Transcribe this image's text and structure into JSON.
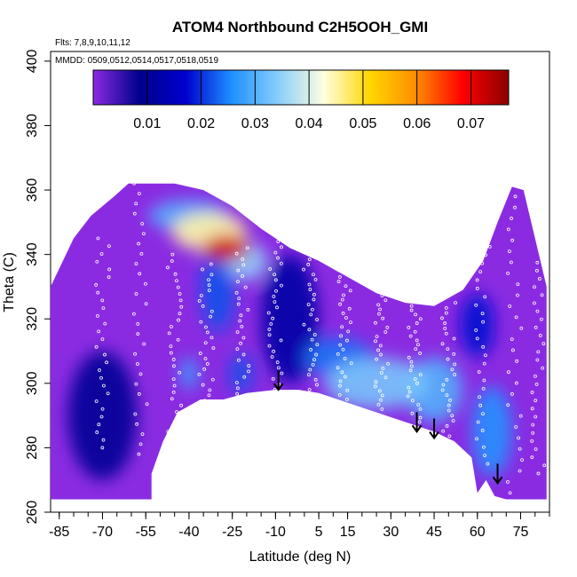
{
  "chart_data": {
    "type": "heatmap",
    "title": "ATOM4 Northbound C2H5OOH_GMI",
    "flights_note": "Flts: 7,8,9,10,11,12",
    "mmdd_note": "MMDD: 0509,0512,0514,0517,0518,0519",
    "xlabel": "Latitude (deg N)",
    "ylabel": "Theta (C)",
    "xlim": [
      -88,
      85
    ],
    "ylim": [
      260,
      403
    ],
    "x_tick_labels": [
      "-85",
      "-70",
      "-55",
      "-40",
      "-25",
      "-10",
      "5",
      "15",
      "30",
      "45",
      "60",
      "75"
    ],
    "x_tick_values": [
      -85,
      -70,
      -55,
      -40,
      -25,
      -10,
      5,
      15,
      30,
      45,
      60,
      75
    ],
    "y_tick_labels": [
      "260",
      "280",
      "300",
      "320",
      "340",
      "360",
      "380",
      "400"
    ],
    "y_tick_values": [
      260,
      280,
      300,
      320,
      340,
      360,
      380,
      400
    ],
    "colorbar": {
      "min": 0.0,
      "max": 0.077,
      "tick_labels": [
        "0.01",
        "0.02",
        "0.03",
        "0.04",
        "0.05",
        "0.06",
        "0.07"
      ],
      "tick_values": [
        0.01,
        0.02,
        0.03,
        0.04,
        0.05,
        0.06,
        0.07
      ],
      "colors": [
        "#8a2be2",
        "#00008b",
        "#0000cd",
        "#1e90ff",
        "#87cefa",
        "#ffffe0",
        "#ffd700",
        "#ff8c00",
        "#ff0000",
        "#8b0000"
      ]
    },
    "arrows": [
      {
        "lat": -9,
        "theta": 298
      },
      {
        "lat": 39,
        "theta": 285
      },
      {
        "lat": 45,
        "theta": 283
      },
      {
        "lat": 67,
        "theta": 269
      }
    ],
    "ground_boundary": [
      [
        -53,
        264
      ],
      [
        -53,
        272
      ],
      [
        -49,
        282
      ],
      [
        -44,
        291
      ],
      [
        -36,
        295
      ],
      [
        -28,
        295
      ],
      [
        -20,
        297
      ],
      [
        -10,
        298
      ],
      [
        -2,
        298
      ],
      [
        5,
        297
      ],
      [
        15,
        294
      ],
      [
        25,
        291
      ],
      [
        35,
        288
      ],
      [
        45,
        285
      ],
      [
        52,
        282
      ],
      [
        58,
        277
      ],
      [
        60,
        266
      ],
      [
        63,
        270
      ],
      [
        66,
        265
      ],
      [
        70,
        264
      ]
    ],
    "outer_boundary": [
      [
        -88,
        330
      ],
      [
        -80,
        345
      ],
      [
        -74,
        352
      ],
      [
        -66,
        358
      ],
      [
        -61,
        362
      ],
      [
        -55,
        362
      ],
      [
        -45,
        362
      ],
      [
        -35,
        360
      ],
      [
        -25,
        355
      ],
      [
        -15,
        348
      ],
      [
        -5,
        342
      ],
      [
        5,
        338
      ],
      [
        15,
        333
      ],
      [
        25,
        328
      ],
      [
        35,
        325
      ],
      [
        45,
        324
      ],
      [
        55,
        329
      ],
      [
        62,
        338
      ],
      [
        67,
        350
      ],
      [
        72,
        361
      ],
      [
        76,
        360
      ],
      [
        80,
        345
      ],
      [
        84,
        330
      ],
      [
        84,
        264
      ]
    ],
    "hotspots": [
      {
        "lat": -27,
        "theta": 342,
        "value": 0.072,
        "sx": 8,
        "sy": 4
      },
      {
        "lat": -33,
        "theta": 347,
        "value": 0.045,
        "sx": 13,
        "sy": 6
      },
      {
        "lat": -40,
        "theta": 352,
        "value": 0.03,
        "sx": 14,
        "sy": 5
      },
      {
        "lat": -20,
        "theta": 338,
        "value": 0.035,
        "sx": 7,
        "sy": 6
      },
      {
        "lat": -30,
        "theta": 330,
        "value": 0.022,
        "sx": 6,
        "sy": 14
      },
      {
        "lat": -40,
        "theta": 303,
        "value": 0.028,
        "sx": 3,
        "sy": 5
      },
      {
        "lat": -22,
        "theta": 303,
        "value": 0.022,
        "sx": 4,
        "sy": 6
      },
      {
        "lat": 25,
        "theta": 300,
        "value": 0.033,
        "sx": 18,
        "sy": 8
      },
      {
        "lat": 45,
        "theta": 298,
        "value": 0.03,
        "sx": 10,
        "sy": 10
      },
      {
        "lat": 65,
        "theta": 285,
        "value": 0.026,
        "sx": 7,
        "sy": 14
      },
      {
        "lat": 12,
        "theta": 308,
        "value": 0.024,
        "sx": 12,
        "sy": 6
      },
      {
        "lat": 60,
        "theta": 318,
        "value": 0.018,
        "sx": 6,
        "sy": 10
      },
      {
        "lat": -5,
        "theta": 320,
        "value": 0.012,
        "sx": 10,
        "sy": 20
      },
      {
        "lat": -70,
        "theta": 290,
        "value": 0.01,
        "sx": 12,
        "sy": 20
      }
    ],
    "flight_tracks": [
      {
        "lat": -70,
        "theta_range": [
          280,
          345
        ]
      },
      {
        "lat": -57,
        "theta_range": [
          278,
          362
        ]
      },
      {
        "lat": -45,
        "theta_range": [
          285,
          340
        ]
      },
      {
        "lat": -34,
        "theta_range": [
          293,
          337
        ]
      },
      {
        "lat": -21,
        "theta_range": [
          295,
          342
        ]
      },
      {
        "lat": -10,
        "theta_range": [
          298,
          344
        ]
      },
      {
        "lat": 2,
        "theta_range": [
          298,
          340
        ]
      },
      {
        "lat": 14,
        "theta_range": [
          295,
          333
        ]
      },
      {
        "lat": 27,
        "theta_range": [
          292,
          330
        ]
      },
      {
        "lat": 38,
        "theta_range": [
          288,
          324
        ]
      },
      {
        "lat": 50,
        "theta_range": [
          282,
          325
        ]
      },
      {
        "lat": 62,
        "theta_range": [
          275,
          345
        ]
      },
      {
        "lat": 73,
        "theta_range": [
          266,
          358
        ]
      },
      {
        "lat": 81,
        "theta_range": [
          272,
          340
        ]
      }
    ]
  }
}
